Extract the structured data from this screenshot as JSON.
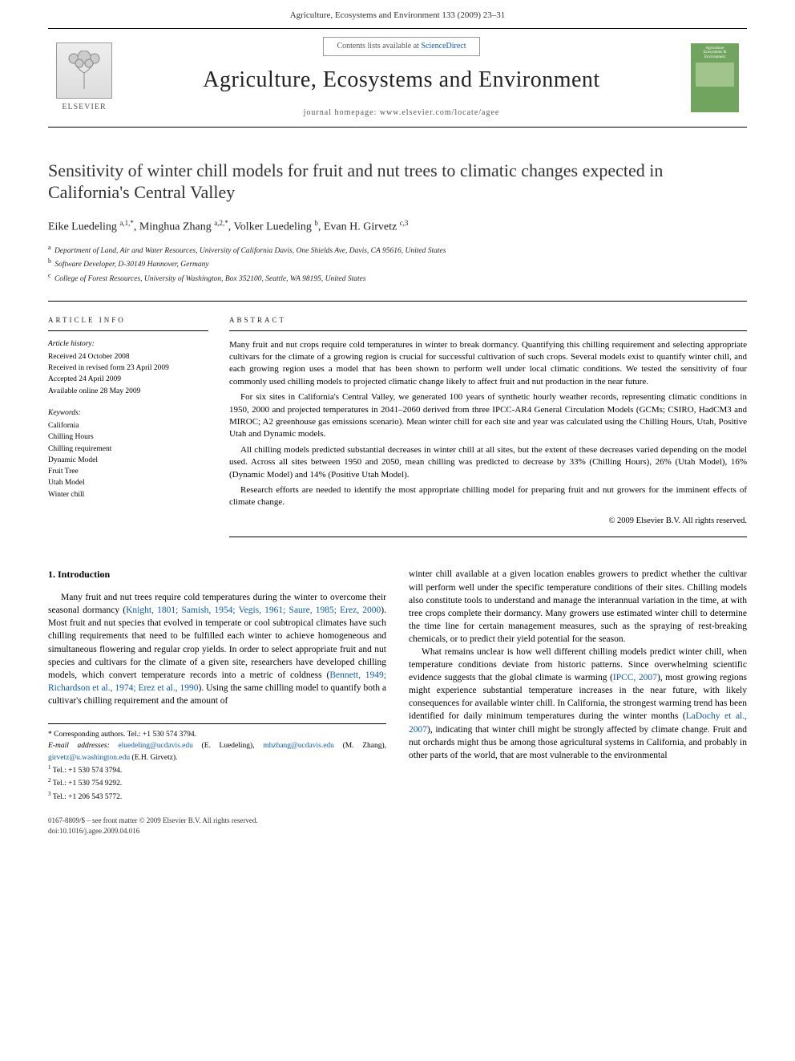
{
  "header": {
    "running": "Agriculture, Ecosystems and Environment 133 (2009) 23–31"
  },
  "masthead": {
    "contents_prefix": "Contents lists available at ",
    "contents_link": "ScienceDirect",
    "journal_title": "Agriculture, Ecosystems and Environment",
    "homepage_label": "journal homepage: www.elsevier.com/locate/agee",
    "publisher": "ELSEVIER",
    "cover_lines": [
      "Agriculture",
      "Ecosystems &",
      "Environment"
    ]
  },
  "article": {
    "title": "Sensitivity of winter chill models for fruit and nut trees to climatic changes expected in California's Central Valley",
    "authors_html": "Eike Luedeling <sup>a,1,*</sup>, Minghua Zhang <sup>a,2,*</sup>, Volker Luedeling <sup>b</sup>, Evan H. Girvetz <sup>c,3</sup>",
    "affiliations": [
      {
        "sup": "a",
        "text": "Department of Land, Air and Water Resources, University of California Davis, One Shields Ave, Davis, CA 95616, United States"
      },
      {
        "sup": "b",
        "text": "Software Developer, D-30149 Hannover, Germany"
      },
      {
        "sup": "c",
        "text": "College of Forest Resources, University of Washington, Box 352100, Seattle, WA 98195, United States"
      }
    ]
  },
  "info": {
    "heading": "ARTICLE INFO",
    "history_label": "Article history:",
    "history": [
      "Received 24 October 2008",
      "Received in revised form 23 April 2009",
      "Accepted 24 April 2009",
      "Available online 28 May 2009"
    ],
    "keywords_label": "Keywords:",
    "keywords": [
      "California",
      "Chilling Hours",
      "Chilling requirement",
      "Dynamic Model",
      "Fruit Tree",
      "Utah Model",
      "Winter chill"
    ]
  },
  "abstract": {
    "heading": "ABSTRACT",
    "paras": [
      "Many fruit and nut crops require cold temperatures in winter to break dormancy. Quantifying this chilling requirement and selecting appropriate cultivars for the climate of a growing region is crucial for successful cultivation of such crops. Several models exist to quantify winter chill, and each growing region uses a model that has been shown to perform well under local climatic conditions. We tested the sensitivity of four commonly used chilling models to projected climatic change likely to affect fruit and nut production in the near future.",
      "For six sites in California's Central Valley, we generated 100 years of synthetic hourly weather records, representing climatic conditions in 1950, 2000 and projected temperatures in 2041–2060 derived from three IPCC-AR4 General Circulation Models (GCMs; CSIRO, HadCM3 and MIROC; A2 greenhouse gas emissions scenario). Mean winter chill for each site and year was calculated using the Chilling Hours, Utah, Positive Utah and Dynamic models.",
      "All chilling models predicted substantial decreases in winter chill at all sites, but the extent of these decreases varied depending on the model used. Across all sites between 1950 and 2050, mean chilling was predicted to decrease by 33% (Chilling Hours), 26% (Utah Model), 16% (Dynamic Model) and 14% (Positive Utah Model).",
      "Research efforts are needed to identify the most appropriate chilling model for preparing fruit and nut growers for the imminent effects of climate change."
    ],
    "copyright": "© 2009 Elsevier B.V. All rights reserved."
  },
  "intro": {
    "heading": "1. Introduction",
    "col1_paras": [
      "Many fruit and nut trees require cold temperatures during the winter to overcome their seasonal dormancy (<span class=\"cite\">Knight, 1801; Samish, 1954; Vegis, 1961; Saure, 1985; Erez, 2000</span>). Most fruit and nut species that evolved in temperate or cool subtropical climates have such chilling requirements that need to be fulfilled each winter to achieve homogeneous and simultaneous flowering and regular crop yields. In order to select appropriate fruit and nut species and cultivars for the climate of a given site, researchers have developed chilling models, which convert temperature records into a metric of coldness (<span class=\"cite\">Bennett, 1949; Richardson et al., 1974; Erez et al., 1990</span>). Using the same chilling model to quantify both a cultivar's chilling requirement and the amount of"
    ],
    "col2_paras": [
      "winter chill available at a given location enables growers to predict whether the cultivar will perform well under the specific temperature conditions of their sites. Chilling models also constitute tools to understand and manage the interannual variation in the time, at with tree crops complete their dormancy. Many growers use estimated winter chill to determine the time line for certain management measures, such as the spraying of rest-breaking chemicals, or to predict their yield potential for the season.",
      "What remains unclear is how well different chilling models predict winter chill, when temperature conditions deviate from historic patterns. Since overwhelming scientific evidence suggests that the global climate is warming (<span class=\"cite\">IPCC, 2007</span>), most growing regions might experience substantial temperature increases in the near future, with likely consequences for available winter chill. In California, the strongest warming trend has been identified for daily minimum temperatures during the winter months (<span class=\"cite\">LaDochy et al., 2007</span>), indicating that winter chill might be strongly affected by climate change. Fruit and nut orchards might thus be among those agricultural systems in California, and probably in other parts of the world, that are most vulnerable to the environmental"
    ]
  },
  "footnotes": {
    "corresp": "* Corresponding authors. Tel.: +1 530 574 3794.",
    "email_label": "E-mail addresses:",
    "emails": [
      {
        "addr": "eluedeling@ucdavis.edu",
        "who": "(E. Luedeling),"
      },
      {
        "addr": "mhzhang@ucdavis.edu",
        "who": "(M. Zhang),"
      },
      {
        "addr": "girvetz@u.washington.edu",
        "who": "(E.H. Girvetz)."
      }
    ],
    "tels": [
      {
        "sup": "1",
        "text": "Tel.: +1 530 574 3794."
      },
      {
        "sup": "2",
        "text": "Tel.: +1 530 754 9292."
      },
      {
        "sup": "3",
        "text": "Tel.: +1 206 543 5772."
      }
    ]
  },
  "bottom": {
    "line1": "0167-8809/$ – see front matter © 2009 Elsevier B.V. All rights reserved.",
    "line2": "doi:10.1016/j.agee.2009.04.016"
  },
  "colors": {
    "link": "#0b5bbd",
    "cover_bg": "#71a45f"
  }
}
